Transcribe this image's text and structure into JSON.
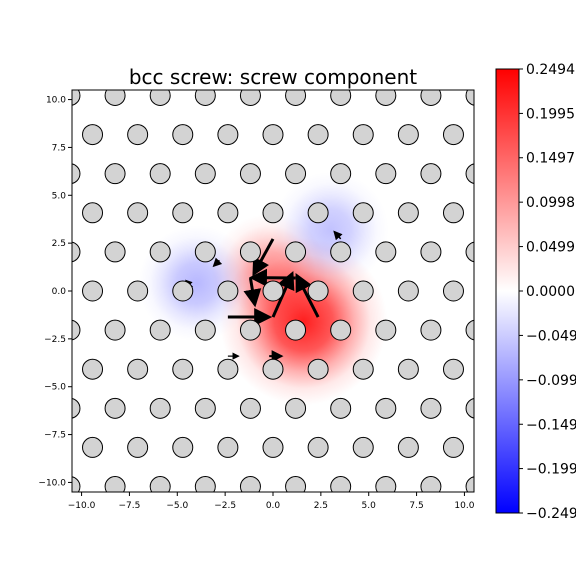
{
  "chart_data": {
    "type": "heatmap",
    "title": "bcc screw: screw component",
    "xlabel": "",
    "ylabel": "",
    "xlim": [
      -10.5,
      10.5
    ],
    "ylim": [
      -10.5,
      10.5
    ],
    "xticks": [
      -10.0,
      -7.5,
      -5.0,
      -2.5,
      0.0,
      2.5,
      5.0,
      7.5,
      10.0
    ],
    "yticks": [
      -10.0,
      -7.5,
      -5.0,
      -2.5,
      0.0,
      2.5,
      5.0,
      7.5,
      10.0
    ],
    "xtick_labels": [
      "−10.0",
      "−7.5",
      "−5.0",
      "−2.5",
      "0.0",
      "2.5",
      "5.0",
      "7.5",
      "10.0"
    ],
    "ytick_labels": [
      "−10.0",
      "−7.5",
      "−5.0",
      "−2.5",
      "0.0",
      "2.5",
      "5.0",
      "7.5",
      "10.0"
    ],
    "grid": false,
    "colormap": "bwr",
    "colors": {
      "low": "#0000ff",
      "mid": "#ffffff",
      "high": "#ff0000",
      "atom_fill": "#d3d3d3",
      "atom_edge": "#000000"
    },
    "colorbar": {
      "range": [
        -0.2494,
        0.2494
      ],
      "tick_labels": [
        "0.2494",
        "0.1995",
        "0.1497",
        "0.0998",
        "0.0499",
        "0.0000",
        "−0.0499",
        "−0.0998",
        "−0.1497",
        "−0.1995",
        "−0.2494"
      ],
      "tick_values": [
        0.2494,
        0.1995,
        0.1497,
        0.0998,
        0.0499,
        0.0,
        -0.0499,
        -0.0998,
        -0.1497,
        -0.1995,
        -0.2494
      ]
    },
    "density_blobs": [
      {
        "x": 1.6,
        "y": -1.6,
        "sigma": 2.3,
        "value": 0.22
      },
      {
        "x": -0.2,
        "y": 1.0,
        "sigma": 1.6,
        "value": 0.1
      },
      {
        "x": -4.0,
        "y": 0.4,
        "sigma": 1.6,
        "value": -0.07
      },
      {
        "x": 3.0,
        "y": 3.2,
        "sigma": 1.6,
        "value": -0.06
      }
    ],
    "atoms": {
      "row_spacing_y": 2.043,
      "x_spacing": 2.357,
      "y_range": [
        -10.2,
        10.5
      ],
      "x_range": [
        -10.5,
        10.5
      ]
    },
    "displacement_arrows": [
      {
        "x0": -1.179,
        "y0": 0.68,
        "x1": -0.95,
        "y1": -0.7,
        "width": 3
      },
      {
        "x0": 0.0,
        "y0": -1.361,
        "x1": 1.0,
        "y1": 0.9,
        "width": 3
      },
      {
        "x0": 2.357,
        "y0": -1.361,
        "x1": 1.25,
        "y1": 0.8,
        "width": 3
      },
      {
        "x0": 1.179,
        "y0": 0.68,
        "x1": -1.1,
        "y1": 0.7,
        "width": 3
      },
      {
        "x0": 0.0,
        "y0": 2.721,
        "x1": -1.0,
        "y1": 0.9,
        "width": 3
      },
      {
        "x0": -2.357,
        "y0": -1.361,
        "x1": -0.2,
        "y1": -1.361,
        "width": 3
      },
      {
        "x0": -2.357,
        "y0": -3.402,
        "x1": -1.8,
        "y1": -3.402,
        "width": 1.2
      },
      {
        "x0": -0.2,
        "y0": -3.402,
        "x1": 0.45,
        "y1": -3.402,
        "width": 2
      },
      {
        "x0": 3.536,
        "y0": 2.721,
        "x1": 3.2,
        "y1": 3.1,
        "width": 1.5
      },
      {
        "x0": -2.8,
        "y0": 1.6,
        "x1": -3.1,
        "y1": 1.3,
        "width": 1.5
      },
      {
        "x0": -4.2,
        "y0": 0.2,
        "x1": -4.55,
        "y1": 0.55,
        "width": 1.2
      }
    ]
  }
}
